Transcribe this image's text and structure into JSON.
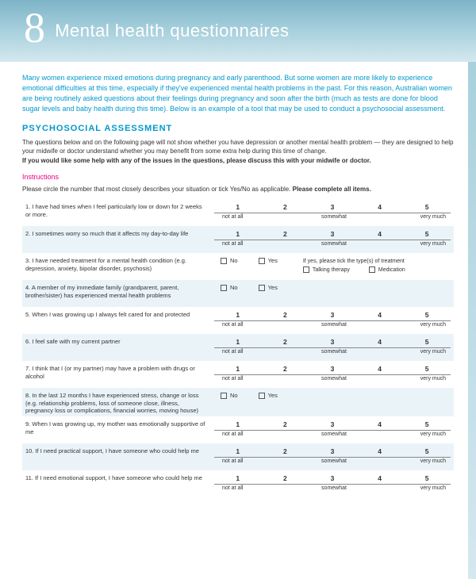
{
  "header": {
    "chapter_number": "8",
    "title": "Mental health questionnaires"
  },
  "intro": "Many women experience mixed emotions during pregnancy and early parenthood. But some women are more likely to experience emotional difficulties at this time, especially if they've experienced mental health problems in the past. For this reason, Australian women are being routinely asked questions about their feelings during pregnancy and soon after the birth (much as tests are done for blood sugar levels and baby health during this time). Below is an example of a tool that may be used to conduct a psychosocial assessment.",
  "section": {
    "title": "PSYCHOSOCIAL ASSESSMENT",
    "intro_plain": "The questions below and on the following page will not show whether you have depression or another mental health problem — they are designed to help your midwife or doctor understand whether you may benefit from some extra help during this time of change.",
    "intro_bold": "If you would like some help with any of the issues in the questions, please discuss this with your midwife or doctor."
  },
  "instructions": {
    "label": "Instructions",
    "text_plain": "Please circle the number that most closely describes your situation or tick Yes/No as applicable. ",
    "text_bold": "Please complete all items."
  },
  "scale": {
    "n1": "1",
    "n2": "2",
    "n3": "3",
    "n4": "4",
    "n5": "5",
    "left": "not at all",
    "mid": "somewhat",
    "right": "very much"
  },
  "yesno": {
    "no": "No",
    "yes": "Yes"
  },
  "q3_extra": {
    "prompt": "If yes, please tick the type(s) of treatment",
    "opt1": "Talking therapy",
    "opt2": "Medication"
  },
  "questions": {
    "q1": "1. I have had times when I feel particularly low or down for 2 weeks or more.",
    "q2": "2. I sometimes worry so much that it affects my day-to-day life",
    "q3": "3. I have needed treatment for a mental health condition (e.g. depression, anxiety, bipolar disorder, psychosis)",
    "q4": "4. A member of my immediate family (grandparent, parent, brother/sister) has experienced mental health problems",
    "q5": "5. When I was growing up I always felt cared for and protected",
    "q6": "6. I feel safe with my current partner",
    "q7": "7. I think that I (or my partner) may have a problem with drugs or alcohol",
    "q8": "8. In the last 12 months I have experienced stress, change or loss (e.g. relationship problems, loss of someone close, illness, pregnancy loss or complications, financial worries, moving house)",
    "q9": "9. When I was growing up, my mother was emotionally supportive of me",
    "q10": "10. If I need practical support, I have someone who could help me",
    "q11": "11. If I need emotional support, I have someone who could help me"
  },
  "colors": {
    "accent": "#0099cc",
    "pink": "#e6007e",
    "shade": "#eaf4f8"
  }
}
